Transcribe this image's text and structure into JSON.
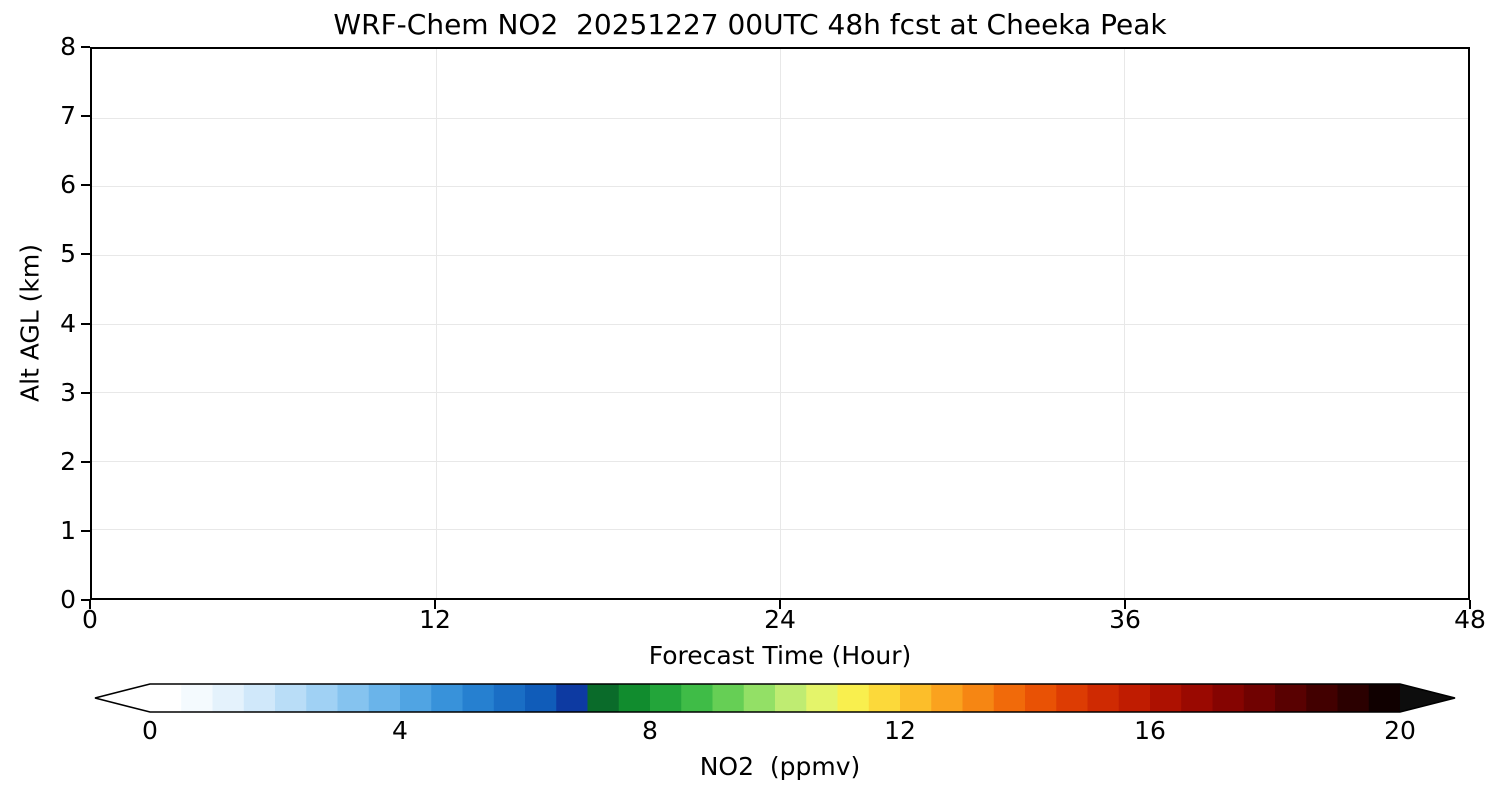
{
  "chart_data": {
    "type": "heatmap",
    "title": "WRF-Chem NO2  20251227 00UTC 48h fcst at Cheeka Peak",
    "xlabel": "Forecast Time (Hour)",
    "ylabel": "Alt AGL (km)",
    "xlim": [
      0,
      48
    ],
    "ylim": [
      0,
      8
    ],
    "x_ticks": [
      0,
      12,
      24,
      36,
      48
    ],
    "y_ticks": [
      0,
      1,
      2,
      3,
      4,
      5,
      6,
      7,
      8
    ],
    "grid": true,
    "values": [],
    "colorbar": {
      "label": "NO2  (ppmv)",
      "range": [
        0,
        20
      ],
      "ticks": [
        0,
        4,
        8,
        12,
        16,
        20
      ],
      "extend": "both",
      "under_color": "#ffffff",
      "over_color": "#0d0d0d",
      "segment_colors": [
        "#ffffff",
        "#f4fafe",
        "#e4f2fc",
        "#d0e8fa",
        "#b9ddf7",
        "#a0d1f4",
        "#85c3ef",
        "#6ab4ea",
        "#50a4e3",
        "#3892da",
        "#2680d0",
        "#1a6ec5",
        "#105cb9",
        "#0d3aa2",
        "#0a6b2a",
        "#118c2e",
        "#23a53a",
        "#3fbc47",
        "#66cf55",
        "#93e066",
        "#bfec72",
        "#e4f46a",
        "#f9ef4e",
        "#fcd93a",
        "#fcbe2a",
        "#faa21e",
        "#f68613",
        "#f16a0a",
        "#e95205",
        "#dd3c03",
        "#cf2a02",
        "#c01c01",
        "#ad1101",
        "#9a0901",
        "#850401",
        "#700201",
        "#590101",
        "#420000",
        "#2b0000",
        "#100000"
      ]
    }
  },
  "colors": {
    "background": "#ffffff",
    "axis": "#000000",
    "grid": "#e8e8e8",
    "text": "#000000"
  }
}
